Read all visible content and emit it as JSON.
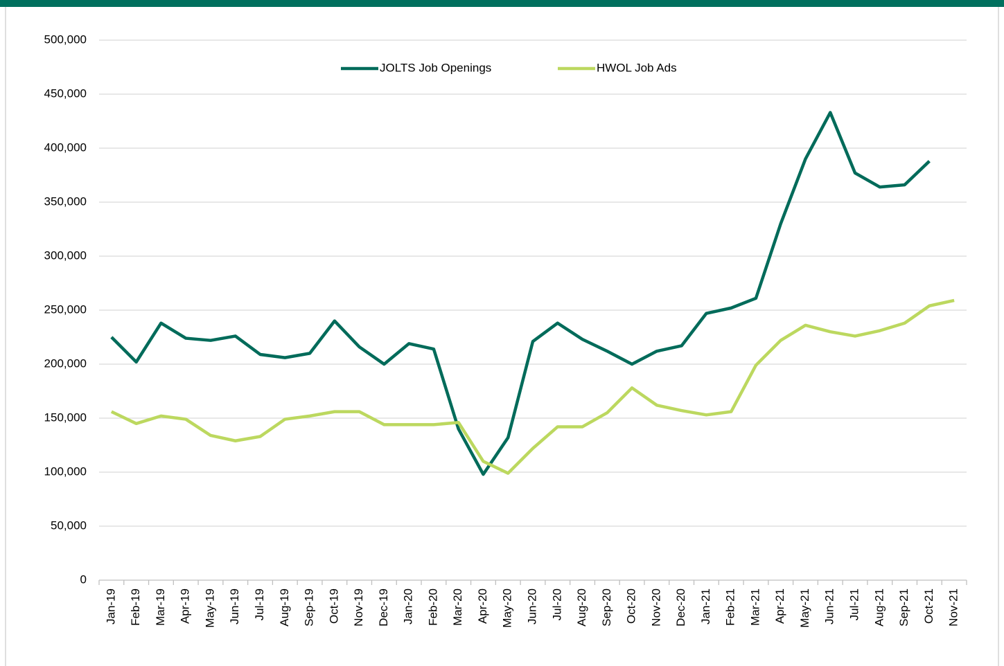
{
  "chart_data": {
    "type": "line",
    "categories": [
      "Jan-19",
      "Feb-19",
      "Mar-19",
      "Apr-19",
      "May-19",
      "Jun-19",
      "Jul-19",
      "Aug-19",
      "Sep-19",
      "Oct-19",
      "Nov-19",
      "Dec-19",
      "Jan-20",
      "Feb-20",
      "Mar-20",
      "Apr-20",
      "May-20",
      "Jun-20",
      "Jul-20",
      "Aug-20",
      "Sep-20",
      "Oct-20",
      "Nov-20",
      "Dec-20",
      "Jan-21",
      "Feb-21",
      "Mar-21",
      "Apr-21",
      "May-21",
      "Jun-21",
      "Jul-21",
      "Aug-21",
      "Sep-21",
      "Oct-21",
      "Nov-21"
    ],
    "series": [
      {
        "name": "JOLTS Job Openings",
        "color": "#006b5a",
        "values": [
          225000,
          202000,
          238000,
          224000,
          222000,
          226000,
          209000,
          206000,
          210000,
          240000,
          216000,
          200000,
          219000,
          214000,
          140000,
          98000,
          132000,
          221000,
          238000,
          223000,
          212000,
          200000,
          212000,
          217000,
          247000,
          252000,
          261000,
          330000,
          390000,
          433000,
          377000,
          364000,
          366000,
          388000,
          null
        ]
      },
      {
        "name": "HWOL Job Ads",
        "color": "#bcd85f",
        "values": [
          156000,
          145000,
          152000,
          149000,
          134000,
          129000,
          133000,
          149000,
          152000,
          156000,
          156000,
          144000,
          144000,
          144000,
          146000,
          110000,
          99000,
          122000,
          142000,
          142000,
          155000,
          178000,
          162000,
          157000,
          153000,
          156000,
          199000,
          222000,
          236000,
          230000,
          226000,
          231000,
          238000,
          254000,
          259000
        ]
      }
    ],
    "ylim": [
      0,
      500000
    ],
    "yticks": [
      0,
      {
        "value": 50000,
        "label": "50,000"
      },
      {
        "value": 100000,
        "label": "100,000"
      },
      {
        "value": 150000,
        "label": "150,000"
      },
      {
        "value": 200000,
        "label": "200,000"
      },
      {
        "value": 250000,
        "label": "250,000"
      },
      {
        "value": 300000,
        "label": "300,000"
      },
      {
        "value": 350000,
        "label": "350,000"
      },
      {
        "value": 400000,
        "label": "400,000"
      },
      {
        "value": 450000,
        "label": "450,000"
      },
      {
        "value": 500000,
        "label": "500,000"
      }
    ],
    "grid": true,
    "legend": "top"
  }
}
